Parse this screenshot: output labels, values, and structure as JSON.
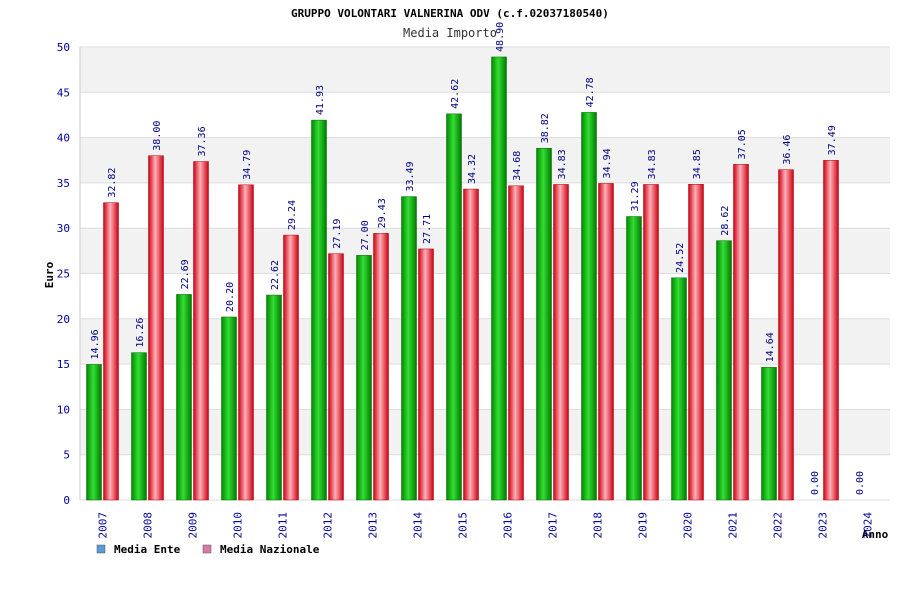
{
  "chart_data": {
    "type": "bar",
    "title": "GRUPPO VOLONTARI VALNERINA ODV (c.f.02037180540)",
    "subtitle": "Media Importo",
    "ylabel": "Euro",
    "xlabel": "Anno",
    "ylim": [
      0,
      50
    ],
    "yticks": [
      0,
      5,
      10,
      15,
      20,
      25,
      30,
      35,
      40,
      45,
      50
    ],
    "grid": "horizontal bands",
    "legend_position": "bottom-left",
    "categories": [
      "2007",
      "2008",
      "2009",
      "2010",
      "2011",
      "2012",
      "2013",
      "2014",
      "2015",
      "2016",
      "2017",
      "2018",
      "2019",
      "2020",
      "2021",
      "2022",
      "2023",
      "2024"
    ],
    "series": [
      {
        "name": "Media Ente",
        "legend_color": "#5b9bd5",
        "bar_color": "#00b000",
        "values": [
          14.96,
          16.26,
          22.69,
          20.2,
          22.62,
          41.93,
          27.0,
          33.49,
          42.62,
          48.9,
          38.82,
          42.78,
          31.29,
          24.52,
          28.62,
          14.64,
          0.0,
          0.0
        ],
        "labels": [
          "14.96",
          "16.26",
          "22.69",
          "20.20",
          "22.62",
          "41.93",
          "27.00",
          "33.49",
          "42.62",
          "48.90",
          "38.82",
          "42.78",
          "31.29",
          "24.52",
          "28.62",
          "14.64",
          "0.00",
          "0.00"
        ]
      },
      {
        "name": "Media Nazionale",
        "legend_color": "#d97ba8",
        "bar_color": "#e8202a",
        "values": [
          32.82,
          38.0,
          37.36,
          34.79,
          29.24,
          27.19,
          29.43,
          27.71,
          34.32,
          34.68,
          34.83,
          34.94,
          34.83,
          34.85,
          37.05,
          36.46,
          37.49,
          null
        ],
        "labels": [
          "32.82",
          "38.00",
          "37.36",
          "34.79",
          "29.24",
          "27.19",
          "29.43",
          "27.71",
          "34.32",
          "34.68",
          "34.83",
          "34.94",
          "34.83",
          "34.85",
          "37.05",
          "36.46",
          "37.49",
          ""
        ]
      }
    ]
  }
}
